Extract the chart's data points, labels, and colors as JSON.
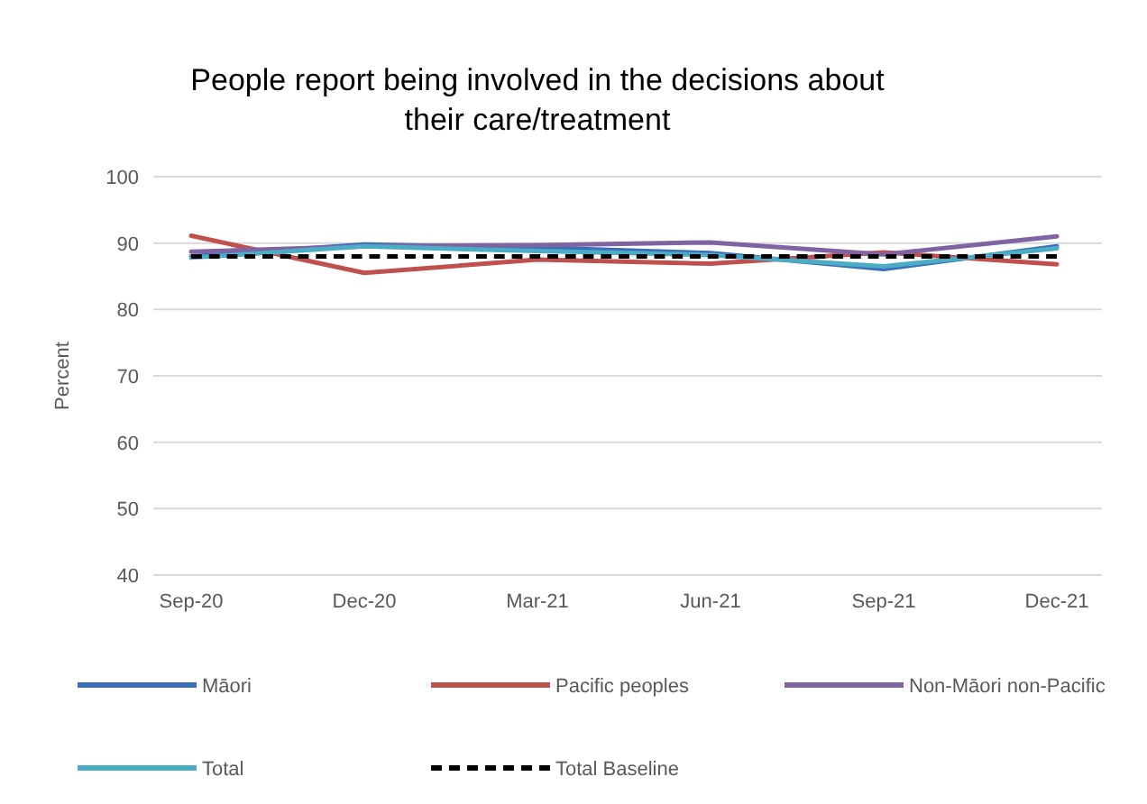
{
  "chart_data": {
    "type": "line",
    "title": "People report being involved in the decisions about their care/treatment",
    "ylabel": "Percent",
    "categories": [
      "Sep-20",
      "Dec-20",
      "Mar-21",
      "Jun-21",
      "Sep-21",
      "Dec-21"
    ],
    "series": [
      {
        "name": "Māori",
        "color": "#3a6fb8",
        "values": [
          88.0,
          89.8,
          89.3,
          88.5,
          86.1,
          89.5
        ]
      },
      {
        "name": "Pacific peoples",
        "color": "#c0504d",
        "values": [
          91.1,
          85.5,
          87.5,
          86.9,
          88.6,
          86.8
        ]
      },
      {
        "name": "Non-Māori non-Pacific",
        "color": "#8064a2",
        "values": [
          88.7,
          89.5,
          89.7,
          90.1,
          88.3,
          91.0
        ]
      },
      {
        "name": "Total",
        "color": "#4bacc6",
        "values": [
          87.8,
          89.5,
          88.8,
          88.2,
          86.5,
          89.2
        ]
      },
      {
        "name": "Total Baseline",
        "color": "#000000",
        "line_style": "dashed",
        "values": [
          88,
          88,
          88,
          88,
          88,
          88
        ]
      }
    ],
    "ylim": [
      40,
      100
    ],
    "yticks": [
      40,
      50,
      60,
      70,
      80,
      90,
      100
    ],
    "grid": "y",
    "legend": "bottom",
    "marker": "none"
  }
}
